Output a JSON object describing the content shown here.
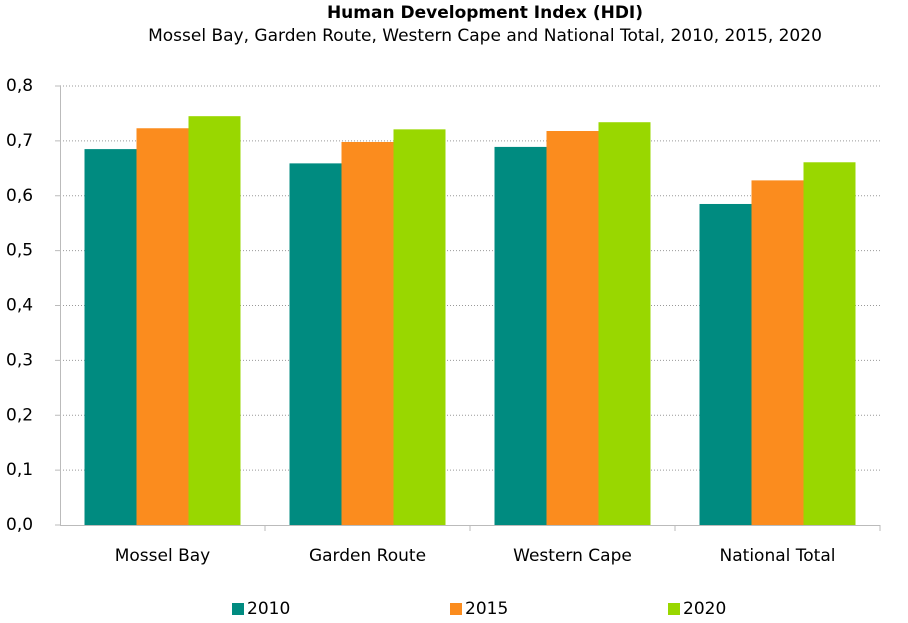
{
  "chart_data": {
    "type": "bar",
    "title": "Human Development Index (HDI)",
    "subtitle": "Mossel Bay, Garden Route, Western Cape and National Total, 2010, 2015, 2020",
    "categories": [
      "Mossel Bay",
      "Garden Route",
      "Western Cape",
      "National Total"
    ],
    "series": [
      {
        "name": "2010",
        "color": "#008b80",
        "values": [
          0.685,
          0.659,
          0.689,
          0.585
        ]
      },
      {
        "name": "2015",
        "color": "#fb8c1e",
        "values": [
          0.723,
          0.698,
          0.718,
          0.628
        ]
      },
      {
        "name": "2020",
        "color": "#99d700",
        "values": [
          0.745,
          0.721,
          0.734,
          0.661
        ]
      }
    ],
    "ylim": [
      0,
      0.8
    ],
    "yticks": [
      {
        "value": 0,
        "label": "0,0"
      },
      {
        "value": 0.1,
        "label": "0,1"
      },
      {
        "value": 0.2,
        "label": "0,2"
      },
      {
        "value": 0.3,
        "label": "0,3"
      },
      {
        "value": 0.4,
        "label": "0,4"
      },
      {
        "value": 0.5,
        "label": "0,5"
      },
      {
        "value": 0.6,
        "label": "0,6"
      },
      {
        "value": 0.7,
        "label": "0,7"
      },
      {
        "value": 0.8,
        "label": "0,8"
      }
    ],
    "grid": true,
    "legend": "bottom"
  }
}
